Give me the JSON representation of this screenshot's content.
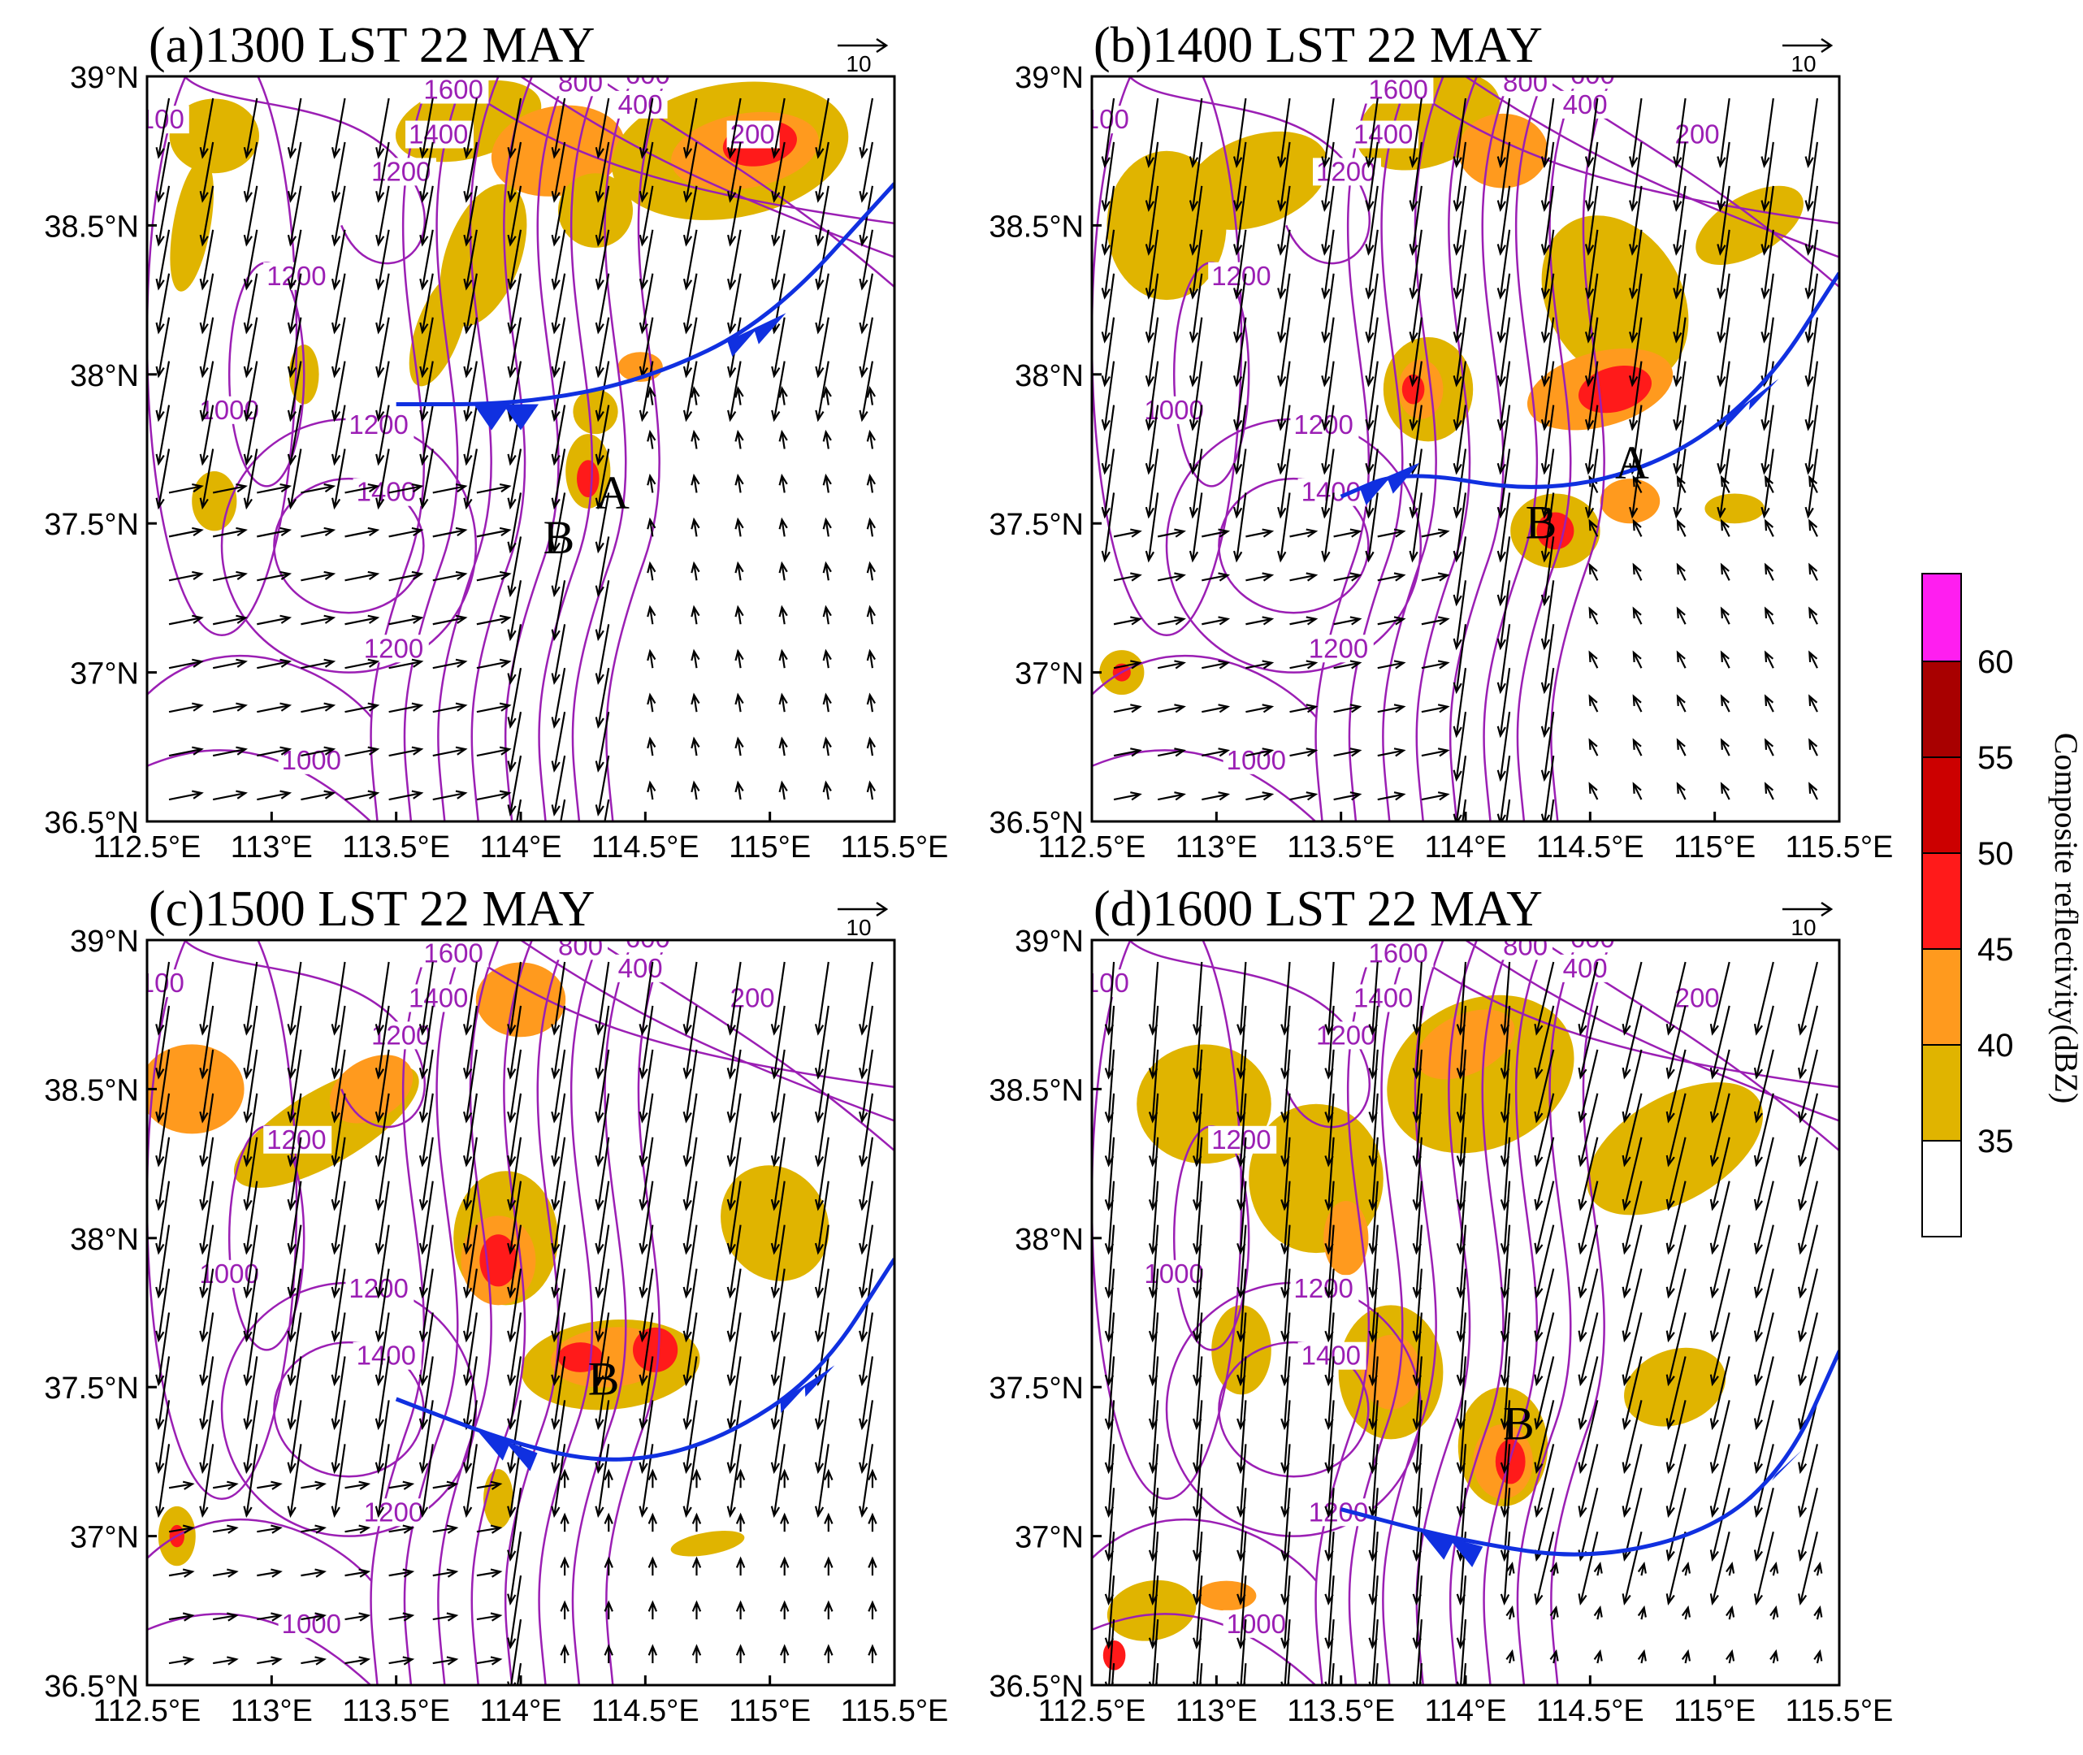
{
  "figure": {
    "panels": [
      {
        "id": "a",
        "title": "(a)1300 LST 22 MAY"
      },
      {
        "id": "b",
        "title": "(b)1400 LST 22 MAY"
      },
      {
        "id": "c",
        "title": "(c)1500 LST 22 MAY"
      },
      {
        "id": "d",
        "title": "(d)1600 LST 22 MAY"
      }
    ],
    "lon_ticks": [
      "112.5°E",
      "113°E",
      "113.5°E",
      "114°E",
      "114.5°E",
      "115°E",
      "115.5°E"
    ],
    "lat_ticks": [
      "39°N",
      "38.5°N",
      "38°N",
      "37.5°N",
      "37°N",
      "36.5°N"
    ],
    "reference_vector": "10",
    "colorbar": {
      "title": "Composite reflectivity(dBZ)",
      "levels": [
        "35",
        "40",
        "45",
        "50",
        "55",
        "60"
      ],
      "colors": [
        "#ffffff",
        "#e0b400",
        "#ff9a1e",
        "#ff1a1a",
        "#cc0000",
        "#a80000",
        "#ff1ef0"
      ]
    },
    "contour_color": "#9b1fb4",
    "front_color": "#1030e0",
    "vector_color": "#000000"
  },
  "chart_data": [
    {
      "type": "heatmap",
      "panel": "a",
      "title": "(a)1300 LST 22 MAY",
      "xlim": [
        112.5,
        115.5
      ],
      "ylim": [
        36.5,
        39.0
      ],
      "contour_labels": [
        "1600",
        "1400",
        "1200",
        "1200",
        "1000",
        "1200",
        "1400",
        "1200",
        "1000",
        "800",
        "600",
        "400",
        "200",
        "100"
      ],
      "markers": [
        "A",
        "B"
      ],
      "front": [
        [
          113.5,
          37.9
        ],
        [
          114.0,
          37.9
        ],
        [
          114.5,
          37.98
        ],
        [
          115.0,
          38.18
        ],
        [
          115.5,
          38.64
        ]
      ]
    },
    {
      "type": "heatmap",
      "panel": "b",
      "title": "(b)1400 LST 22 MAY",
      "xlim": [
        112.5,
        115.5
      ],
      "ylim": [
        36.5,
        39.0
      ],
      "contour_labels": [
        "1600",
        "1400",
        "1200",
        "1200",
        "1000",
        "1200",
        "1400",
        "1200",
        "1000",
        "800",
        "600",
        "400",
        "200",
        "100"
      ],
      "markers": [
        "A",
        "B"
      ],
      "front": [
        [
          113.5,
          37.59
        ],
        [
          113.75,
          37.68
        ],
        [
          114.3,
          37.6
        ],
        [
          114.8,
          37.7
        ],
        [
          115.2,
          37.95
        ],
        [
          115.5,
          38.34
        ]
      ]
    },
    {
      "type": "heatmap",
      "panel": "c",
      "title": "(c)1500 LST 22 MAY",
      "xlim": [
        112.5,
        115.5
      ],
      "ylim": [
        36.5,
        39.0
      ],
      "contour_labels": [
        "1600",
        "1400",
        "1200",
        "1200",
        "1000",
        "1200",
        "1400",
        "1200",
        "1000",
        "800",
        "600",
        "400",
        "200",
        "100"
      ],
      "markers": [
        "B"
      ],
      "front": [
        [
          113.5,
          37.46
        ],
        [
          114.0,
          37.3
        ],
        [
          114.4,
          37.24
        ],
        [
          114.8,
          37.32
        ],
        [
          115.2,
          37.54
        ],
        [
          115.5,
          37.93
        ]
      ]
    },
    {
      "type": "heatmap",
      "panel": "d",
      "title": "(d)1600 LST 22 MAY",
      "xlim": [
        112.5,
        115.5
      ],
      "ylim": [
        36.5,
        39.0
      ],
      "contour_labels": [
        "1600",
        "1400",
        "1200",
        "1200",
        "1000",
        "1200",
        "1400",
        "1200",
        "1000",
        "800",
        "600",
        "400",
        "200",
        "100"
      ],
      "markers": [
        "B"
      ],
      "front": [
        [
          113.5,
          37.09
        ],
        [
          114.0,
          36.98
        ],
        [
          114.5,
          36.92
        ],
        [
          115.0,
          37.02
        ],
        [
          115.3,
          37.25
        ],
        [
          115.5,
          37.62
        ]
      ]
    }
  ]
}
